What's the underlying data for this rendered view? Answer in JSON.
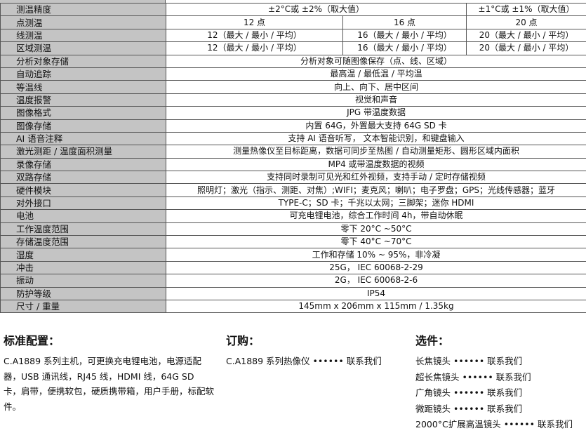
{
  "specs": [
    {
      "label": "测温精度",
      "cells": [
        {
          "text": "±2°C或 ±2%（取大值）",
          "span": 2
        },
        {
          "text": "±1°C或 ±1%（取大值）",
          "span": 1
        }
      ]
    },
    {
      "label": "点测温",
      "cells": [
        {
          "text": "12 点",
          "span": 1
        },
        {
          "text": "16 点",
          "span": 1
        },
        {
          "text": "20 点",
          "span": 1
        }
      ]
    },
    {
      "label": "线测温",
      "cells": [
        {
          "text": "12（最大 / 最小 / 平均）",
          "span": 1
        },
        {
          "text": "16（最大 / 最小 / 平均）",
          "span": 1
        },
        {
          "text": "20（最大 / 最小 / 平均）",
          "span": 1
        }
      ]
    },
    {
      "label": "区域测温",
      "cells": [
        {
          "text": "12（最大 / 最小 / 平均）",
          "span": 1
        },
        {
          "text": "16（最大 / 最小 / 平均）",
          "span": 1
        },
        {
          "text": "20（最大 / 最小 / 平均）",
          "span": 1
        }
      ]
    },
    {
      "label": "分析对象存储",
      "cells": [
        {
          "text": "分析对象可随图像保存（点、线、区域）",
          "span": 3
        }
      ]
    },
    {
      "label": "自动追踪",
      "cells": [
        {
          "text": "最高温 / 最低温 / 平均温",
          "span": 3
        }
      ]
    },
    {
      "label": "等温线",
      "cells": [
        {
          "text": "向上、向下、居中区间",
          "span": 3
        }
      ]
    },
    {
      "label": "温度报警",
      "cells": [
        {
          "text": "视觉和声音",
          "span": 3
        }
      ]
    },
    {
      "label": "图像格式",
      "cells": [
        {
          "text": "JPG 带温度数据",
          "span": 3
        }
      ]
    },
    {
      "label": "图像存储",
      "cells": [
        {
          "text": "内置 64G，外置最大支持 64G SD 卡",
          "span": 3
        }
      ]
    },
    {
      "label": "AI 语音注释",
      "cells": [
        {
          "text": "支持 AI 语音听写， 文本智能识别，和键盘输入",
          "span": 3
        }
      ]
    },
    {
      "label": "激光测距 / 温度面积测量",
      "cells": [
        {
          "text": "测量热像仪至目标距离，数据可同步至热图 / 自动测量矩形、圆形区域内面积",
          "span": 3
        }
      ]
    },
    {
      "label": "录像存储",
      "cells": [
        {
          "text": "MP4 或带温度数据的视频",
          "span": 3
        }
      ]
    },
    {
      "label": "双路存储",
      "cells": [
        {
          "text": "支持同时录制可见光和红外视频，支持手动 / 定时存储视频",
          "span": 3
        }
      ]
    },
    {
      "label": "硬件模块",
      "cells": [
        {
          "text": "照明灯；激光（指示、测距、对焦）;WIFI；麦克风；喇叭；电子罗盘；GPS；光线传感器；蓝牙",
          "span": 3
        }
      ]
    },
    {
      "label": "对外接口",
      "cells": [
        {
          "text": "TYPE-C；SD 卡；千兆以太网；三脚架；迷你 HDMI",
          "span": 3
        }
      ]
    },
    {
      "label": "电池",
      "cells": [
        {
          "text": "可充电锂电池，综合工作时间 4h，带自动休眠",
          "span": 3
        }
      ]
    },
    {
      "label": "工作温度范围",
      "cells": [
        {
          "text": "零下 20°C ~50°C",
          "span": 3
        }
      ]
    },
    {
      "label": "存储温度范围",
      "cells": [
        {
          "text": "零下 40°C ~70°C",
          "span": 3
        }
      ]
    },
    {
      "label": "湿度",
      "cells": [
        {
          "text": "工作和存储 10% ~ 95%，非冷凝",
          "span": 3
        }
      ]
    },
    {
      "label": "冲击",
      "cells": [
        {
          "text": "25G， IEC 60068-2-29",
          "span": 3
        }
      ]
    },
    {
      "label": "振动",
      "cells": [
        {
          "text": "2G， IEC 60068-2-6",
          "span": 3
        }
      ]
    },
    {
      "label": "防护等级",
      "cells": [
        {
          "text": "IP54",
          "span": 3
        }
      ]
    },
    {
      "label": "尺寸 / 重量",
      "cells": [
        {
          "text": "145mm x 206mm x 115mm / 1.35kg",
          "span": 3
        }
      ]
    }
  ],
  "standard": {
    "title": "标准配置：",
    "text": "C.A1889 系列主机，可更换充电锂电池，电源适配器，USB 通讯线，RJ45 线，HDMI 线，64G SD 卡，肩带，便携软包，硬质携带箱，用户手册，标配软件。"
  },
  "order": {
    "title": "订购：",
    "items": [
      "C.A1889 系列热像仪 •••••• 联系我们"
    ]
  },
  "options": {
    "title": "选件：",
    "items": [
      "长焦镜头 •••••• 联系我们",
      "超长焦镜头 •••••• 联系我们",
      "广角镜头 •••••• 联系我们",
      "微距镜头 •••••• 联系我们",
      "2000°C扩展高温镜头 •••••• 联系我们"
    ]
  }
}
